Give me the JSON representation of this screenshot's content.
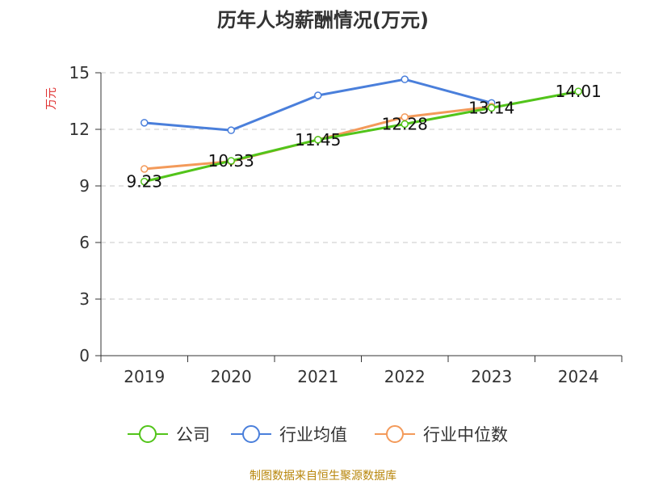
{
  "chart_data": {
    "type": "line",
    "title": "历年人均薪酬情况(万元)",
    "ylabel": "万元",
    "xlabel": "",
    "categories": [
      "2019",
      "2020",
      "2021",
      "2022",
      "2023",
      "2024"
    ],
    "ylim": [
      0,
      15
    ],
    "yticks": [
      0,
      3,
      6,
      9,
      12,
      15
    ],
    "grid": true,
    "legend_position": "bottom-center",
    "series": [
      {
        "name": "公司",
        "color": "#52c41a",
        "values": [
          9.23,
          10.33,
          11.45,
          12.28,
          13.14,
          14.01
        ],
        "labels": [
          "9.23",
          "10.33",
          "11.45",
          "12.28",
          "13.14",
          "14.01"
        ]
      },
      {
        "name": "行业均值",
        "color": "#4a7fdb",
        "values": [
          12.35,
          11.95,
          13.8,
          14.65,
          13.4,
          null
        ]
      },
      {
        "name": "行业中位数",
        "color": "#f39a5a",
        "values": [
          9.9,
          10.3,
          11.45,
          12.65,
          13.2,
          null
        ]
      }
    ]
  },
  "source": "制图数据来自恒生聚源数据库"
}
